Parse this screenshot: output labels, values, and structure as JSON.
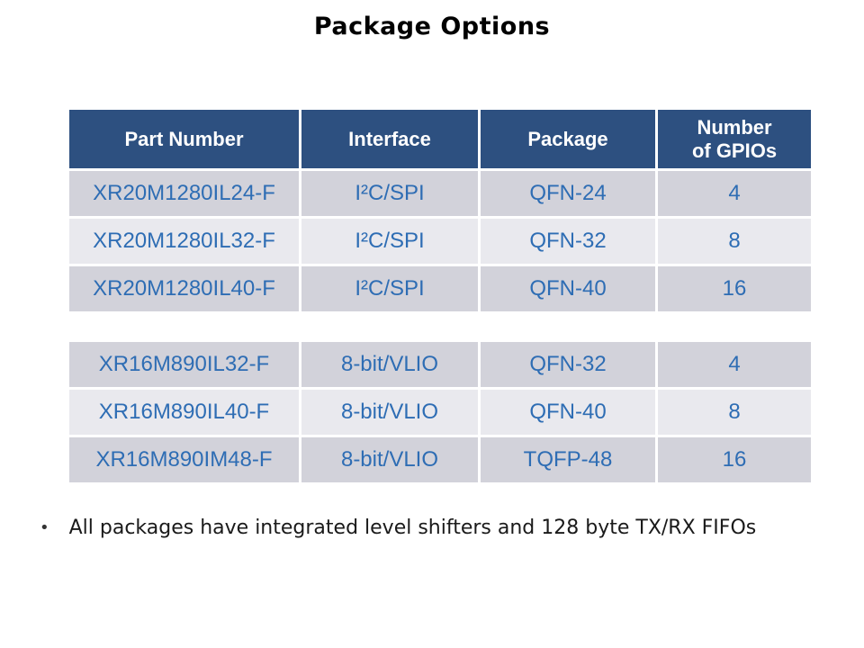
{
  "title": "Package Options",
  "colors": {
    "header_bg": "#2D5080",
    "row_dark": "#D2D2DA",
    "row_light": "#E9E9EE",
    "cell_text": "#2E6DB4",
    "header_text": "#FFFFFF",
    "title_text": "#000000"
  },
  "table_top": {
    "headers": [
      "Part Number",
      "Interface",
      "Package",
      "Number\nof GPIOs"
    ],
    "rows": [
      {
        "part_number": "XR20M1280IL24-F",
        "interface": "I²C/SPI",
        "package": "QFN-24",
        "gpios": "4"
      },
      {
        "part_number": "XR20M1280IL32-F",
        "interface": "I²C/SPI",
        "package": "QFN-32",
        "gpios": "8"
      },
      {
        "part_number": "XR20M1280IL40-F",
        "interface": "I²C/SPI",
        "package": "QFN-40",
        "gpios": "16"
      }
    ]
  },
  "table_bottom": {
    "rows": [
      {
        "part_number": "XR16M890IL32-F",
        "interface": "8-bit/VLIO",
        "package": "QFN-32",
        "gpios": "4"
      },
      {
        "part_number": "XR16M890IL40-F",
        "interface": "8-bit/VLIO",
        "package": "QFN-40",
        "gpios": "8"
      },
      {
        "part_number": "XR16M890IM48-F",
        "interface": "8-bit/VLIO",
        "package": "TQFP-48",
        "gpios": "16"
      }
    ]
  },
  "footnote": {
    "bullet": "•",
    "text": "All packages have integrated level shifters and 128 byte TX/RX FIFOs"
  }
}
